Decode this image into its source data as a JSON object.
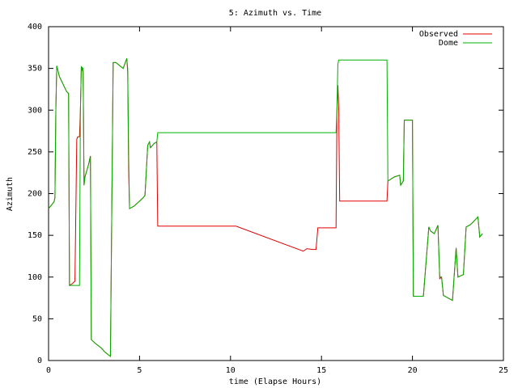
{
  "chart_data": {
    "type": "line",
    "title": "5: Azimuth vs. Time",
    "x_label": "time (Elapse Hours)",
    "y_label": "Azimuth",
    "xlim": [
      0,
      25
    ],
    "xticks": [
      0,
      5,
      10,
      15,
      20,
      25
    ],
    "ylim": [
      0,
      400
    ],
    "yticks": [
      0,
      50,
      100,
      150,
      200,
      250,
      300,
      350,
      400
    ],
    "legend": "top-right",
    "x": [
      0,
      0.3,
      0.35,
      0.4,
      0.45,
      0.6,
      1.0,
      1.1,
      1.15,
      1.3,
      1.45,
      1.55,
      1.6,
      1.7,
      1.75,
      1.8,
      1.9,
      1.95,
      2.0,
      2.2,
      2.3,
      2.35,
      2.6,
      2.9,
      3.1,
      3.4,
      3.55,
      3.7,
      4.1,
      4.3,
      4.35,
      4.4,
      4.45,
      4.7,
      5.2,
      5.3,
      5.45,
      5.55,
      5.6,
      5.8,
      5.95,
      6.0,
      10.3,
      14.0,
      14.2,
      14.5,
      14.7,
      14.8,
      15.8,
      15.85,
      15.9,
      15.95,
      16.0,
      18.6,
      18.65,
      19.0,
      19.3,
      19.35,
      19.5,
      19.55,
      20.0,
      20.05,
      20.6,
      20.9,
      21.0,
      21.2,
      21.4,
      21.5,
      21.6,
      21.7,
      22.2,
      22.4,
      22.5,
      22.8,
      22.95,
      23.2,
      23.6,
      23.7,
      23.85
    ],
    "series": [
      {
        "name": "Observed",
        "color": "#e00000",
        "values": [
          182,
          190,
          195,
          300,
          353,
          340,
          322,
          320,
          90,
          92,
          95,
          265,
          268,
          268,
          300,
          352,
          345,
          210,
          220,
          235,
          245,
          25,
          20,
          15,
          10,
          5,
          357,
          357,
          350,
          362,
          345,
          230,
          182,
          185,
          195,
          198,
          258,
          262,
          255,
          260,
          262,
          161,
          161,
          131,
          134,
          133,
          133,
          159,
          159,
          300,
          330,
          300,
          191,
          191,
          215,
          220,
          222,
          210,
          215,
          288,
          288,
          77,
          77,
          160,
          155,
          152,
          162,
          98,
          100,
          78,
          72,
          135,
          100,
          103,
          160,
          163,
          172,
          148,
          152
        ]
      },
      {
        "name": "Dome",
        "color": "#00b000",
        "values": [
          182,
          190,
          195,
          300,
          353,
          340,
          322,
          320,
          90,
          90,
          90,
          90,
          90,
          90,
          300,
          352,
          350,
          210,
          220,
          235,
          245,
          25,
          20,
          15,
          10,
          5,
          357,
          357,
          350,
          362,
          350,
          250,
          182,
          185,
          195,
          198,
          258,
          262,
          255,
          260,
          262,
          273,
          273,
          273,
          273,
          273,
          273,
          273,
          273,
          300,
          355,
          360,
          360,
          360,
          215,
          220,
          222,
          210,
          215,
          288,
          288,
          77,
          77,
          160,
          155,
          152,
          162,
          100,
          100,
          78,
          72,
          135,
          100,
          103,
          160,
          163,
          172,
          148,
          152
        ]
      }
    ]
  }
}
